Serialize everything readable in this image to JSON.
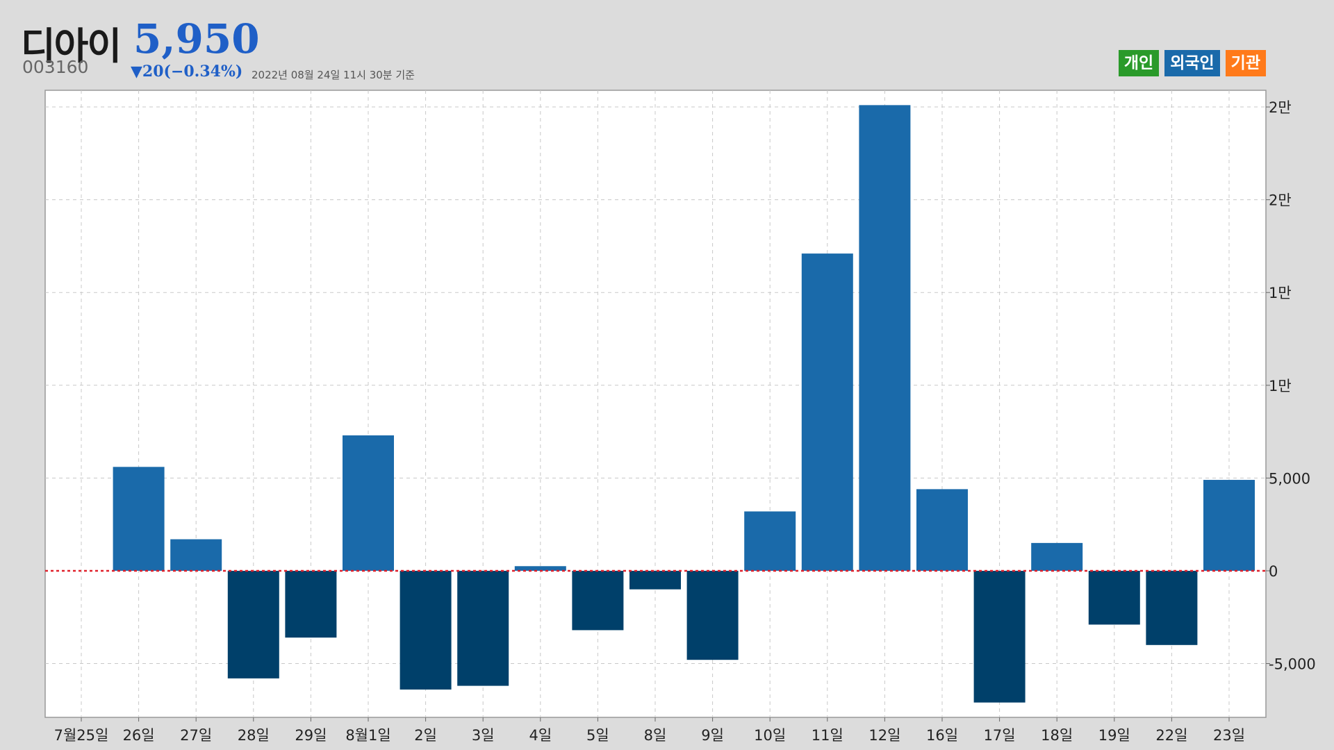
{
  "header": {
    "name": "디아이",
    "price": "5,950",
    "code": "003160",
    "change": "▼20(−0.34%)",
    "as_of": "2022년 08월 24일 11시 30분 기준"
  },
  "legend": [
    {
      "label": "개인",
      "color": "#2a9a2a"
    },
    {
      "label": "외국인",
      "color": "#1a6aaa"
    },
    {
      "label": "기관",
      "color": "#ff7a1a"
    }
  ],
  "colors": {
    "positive": "#1a6aaa",
    "negative": "#00406a",
    "zero_line": "#e0202a",
    "grid": "#c8c8c8"
  },
  "chart_data": {
    "type": "bar",
    "categories": [
      "7월25일",
      "26일",
      "27일",
      "28일",
      "29일",
      "8월1일",
      "2일",
      "3일",
      "4일",
      "5일",
      "8일",
      "9일",
      "10일",
      "11일",
      "12일",
      "16일",
      "17일",
      "18일",
      "19일",
      "22일",
      "23일"
    ],
    "series": [
      {
        "values": [
          0,
          5600,
          1700,
          -5800,
          -3600,
          7300,
          -6400,
          -6200,
          250,
          -3200,
          -1000,
          -4800,
          3200,
          17100,
          25100,
          4400,
          -7100,
          1500,
          -2900,
          -4000,
          4900
        ]
      }
    ],
    "ylim": [
      -7900,
      25900
    ],
    "yticks": [
      {
        "value": 25000,
        "label": "2만"
      },
      {
        "value": 20000,
        "label": "2만"
      },
      {
        "value": 15000,
        "label": "1만"
      },
      {
        "value": 10000,
        "label": "1만"
      },
      {
        "value": 5000,
        "label": "5,000"
      },
      {
        "value": 0,
        "label": "0"
      },
      {
        "value": -5000,
        "label": "-5,000"
      }
    ],
    "grid": true,
    "y_axis_position": "right"
  }
}
